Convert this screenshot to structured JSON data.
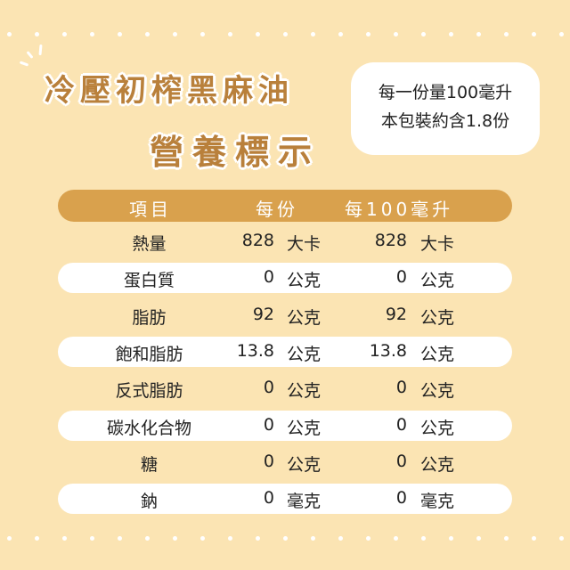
{
  "title": {
    "line1": "冷壓初榨黑麻油",
    "line2": "營養標示"
  },
  "serving_info": {
    "line1": "每一份量100毫升",
    "line2": "本包裝約含1.8份"
  },
  "table": {
    "headers": {
      "item": "項目",
      "per_serving": "每份",
      "per_100ml": "每100毫升"
    },
    "rows": [
      {
        "item": "熱量",
        "per_serving": "828",
        "per_serving_unit": "大卡",
        "per_100ml": "828",
        "per_100ml_unit": "大卡"
      },
      {
        "item": "蛋白質",
        "per_serving": "0",
        "per_serving_unit": "公克",
        "per_100ml": "0",
        "per_100ml_unit": "公克"
      },
      {
        "item": "脂肪",
        "per_serving": "92",
        "per_serving_unit": "公克",
        "per_100ml": "92",
        "per_100ml_unit": "公克"
      },
      {
        "item": "飽和脂肪",
        "per_serving": "13.8",
        "per_serving_unit": "公克",
        "per_100ml": "13.8",
        "per_100ml_unit": "公克"
      },
      {
        "item": "反式脂肪",
        "per_serving": "0",
        "per_serving_unit": "公克",
        "per_100ml": "0",
        "per_100ml_unit": "公克"
      },
      {
        "item": "碳水化合物",
        "per_serving": "0",
        "per_serving_unit": "公克",
        "per_100ml": "0",
        "per_100ml_unit": "公克"
      },
      {
        "item": "糖",
        "per_serving": "0",
        "per_serving_unit": "公克",
        "per_100ml": "0",
        "per_100ml_unit": "公克"
      },
      {
        "item": "鈉",
        "per_serving": "0",
        "per_serving_unit": "毫克",
        "per_100ml": "0",
        "per_100ml_unit": "毫克"
      }
    ]
  },
  "colors": {
    "background": "#fbe4b3",
    "header_bar": "#d9a14d",
    "title_text": "#b9803b"
  }
}
